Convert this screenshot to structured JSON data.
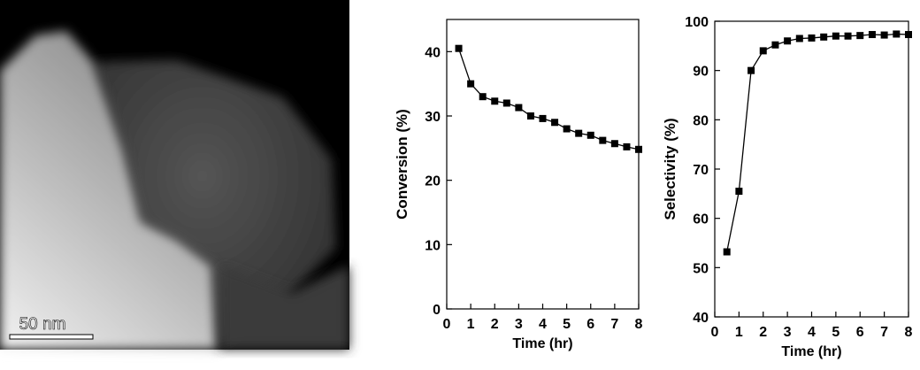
{
  "image": {
    "scale_bar": "50 nm"
  },
  "chart_data": [
    {
      "type": "line",
      "xlabel": "Time (hr)",
      "ylabel": "Conversion (%)",
      "color": "#000000",
      "x": [
        0.5,
        1,
        1.5,
        2,
        2.5,
        3,
        3.5,
        4,
        4.5,
        5,
        5.5,
        6,
        6.5,
        7,
        7.5,
        8
      ],
      "values": [
        40.5,
        35,
        33,
        32.3,
        32,
        31.3,
        30,
        29.6,
        29,
        28,
        27.3,
        27,
        26.2,
        25.7,
        25.2,
        24.8
      ],
      "xlim": [
        0,
        8
      ],
      "xticks": [
        0,
        1,
        2,
        3,
        4,
        5,
        6,
        7,
        8
      ],
      "ylim": [
        0,
        45
      ],
      "yticks": [
        0,
        10,
        20,
        30,
        40
      ]
    },
    {
      "type": "line",
      "xlabel": "Time (hr)",
      "ylabel": "Selectivity (%)",
      "color": "#000000",
      "x": [
        0.5,
        1,
        1.5,
        2,
        2.5,
        3,
        3.5,
        4,
        4.5,
        5,
        5.5,
        6,
        6.5,
        7,
        7.5,
        8
      ],
      "values": [
        53.2,
        65.5,
        90,
        94,
        95.2,
        96,
        96.5,
        96.6,
        96.8,
        97,
        97,
        97.1,
        97.3,
        97.2,
        97.4,
        97.3
      ],
      "xlim": [
        0,
        8
      ],
      "xticks": [
        0,
        1,
        2,
        3,
        4,
        5,
        6,
        7,
        8
      ],
      "ylim": [
        40,
        100
      ],
      "yticks": [
        40,
        50,
        60,
        70,
        80,
        90,
        100
      ]
    }
  ]
}
